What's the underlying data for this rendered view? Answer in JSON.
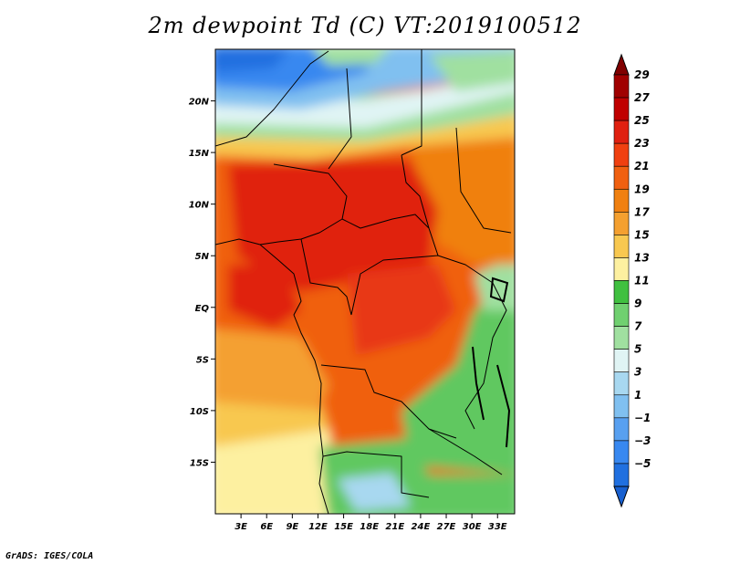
{
  "title": "2m dewpoint Td (C) VT:2019100512",
  "credit": "GrADS: IGES/COLA",
  "map": {
    "lon_range": [
      0,
      35
    ],
    "lat_range": [
      -20,
      25
    ],
    "lat_ticks": [
      {
        "value": 20,
        "label": "20N"
      },
      {
        "value": 15,
        "label": "15N"
      },
      {
        "value": 10,
        "label": "10N"
      },
      {
        "value": 5,
        "label": "5N"
      },
      {
        "value": 0,
        "label": "EQ"
      },
      {
        "value": -5,
        "label": "5S"
      },
      {
        "value": -10,
        "label": "10S"
      },
      {
        "value": -15,
        "label": "15S"
      }
    ],
    "lon_ticks": [
      {
        "value": 3,
        "label": "3E"
      },
      {
        "value": 6,
        "label": "6E"
      },
      {
        "value": 9,
        "label": "9E"
      },
      {
        "value": 12,
        "label": "12E"
      },
      {
        "value": 15,
        "label": "15E"
      },
      {
        "value": 18,
        "label": "18E"
      },
      {
        "value": 21,
        "label": "21E"
      },
      {
        "value": 24,
        "label": "24E"
      },
      {
        "value": 27,
        "label": "27E"
      },
      {
        "value": 30,
        "label": "30E"
      },
      {
        "value": 33,
        "label": "33E"
      }
    ]
  },
  "colorbar": {
    "levels": [
      {
        "label": "29",
        "color": "#a00000"
      },
      {
        "label": "27",
        "color": "#c00000"
      },
      {
        "label": "25",
        "color": "#e02010"
      },
      {
        "label": "23",
        "color": "#f04010"
      },
      {
        "label": "21",
        "color": "#f06010"
      },
      {
        "label": "19",
        "color": "#f08010"
      },
      {
        "label": "17",
        "color": "#f4a030"
      },
      {
        "label": "15",
        "color": "#f8c850"
      },
      {
        "label": "13",
        "color": "#fdf0a0"
      },
      {
        "label": "11",
        "color": "#40c040"
      },
      {
        "label": "9",
        "color": "#70d070"
      },
      {
        "label": "7",
        "color": "#a0e0a0"
      },
      {
        "label": "5",
        "color": "#e0f4f4"
      },
      {
        "label": "3",
        "color": "#a8d8f0"
      },
      {
        "label": "1",
        "color": "#80c0f0"
      },
      {
        "label": "−1",
        "color": "#58a0f0"
      },
      {
        "label": "−3",
        "color": "#3888f0"
      },
      {
        "label": "−5",
        "color": "#2070e0"
      }
    ],
    "top_color": "#800000",
    "bottom_color": "#1860d0"
  }
}
